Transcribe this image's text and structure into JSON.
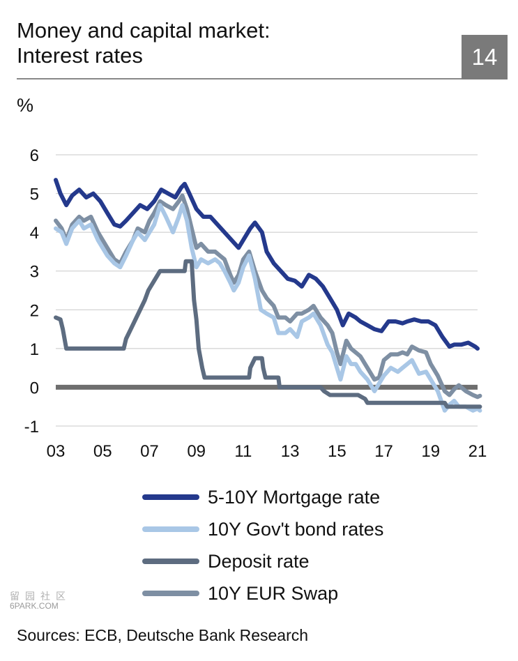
{
  "header": {
    "title_line1": "Money and capital market:",
    "title_line2": "Interest rates",
    "badge": "14"
  },
  "unit_label": "%",
  "chart_data": {
    "type": "line",
    "title": "Money and capital market: Interest rates",
    "ylabel": "%",
    "xlabel": "",
    "ylim": [
      -1,
      6
    ],
    "xlim": [
      2003,
      2021
    ],
    "x_tick_labels": [
      "03",
      "05",
      "07",
      "09",
      "11",
      "13",
      "15",
      "17",
      "19",
      "21"
    ],
    "x_ticks": [
      2003,
      2005,
      2007,
      2009,
      2011,
      2013,
      2015,
      2017,
      2019,
      2021
    ],
    "y_ticks": [
      -1,
      0,
      1,
      2,
      3,
      4,
      5,
      6
    ],
    "y_tick_labels": [
      "-1",
      "0",
      "1",
      "2",
      "3",
      "4",
      "5",
      "6"
    ],
    "grid": true,
    "legend_position": "bottom",
    "series": [
      {
        "name": "10Y EUR Swap",
        "color": "#7e8fa3",
        "points": [
          [
            2003.0,
            4.3
          ],
          [
            2003.25,
            4.1
          ],
          [
            2003.45,
            3.8
          ],
          [
            2003.7,
            4.2
          ],
          [
            2004.0,
            4.4
          ],
          [
            2004.2,
            4.3
          ],
          [
            2004.5,
            4.4
          ],
          [
            2004.8,
            4.0
          ],
          [
            2005.0,
            3.8
          ],
          [
            2005.2,
            3.6
          ],
          [
            2005.5,
            3.3
          ],
          [
            2005.75,
            3.2
          ],
          [
            2006.0,
            3.5
          ],
          [
            2006.3,
            3.8
          ],
          [
            2006.5,
            4.1
          ],
          [
            2006.8,
            4.0
          ],
          [
            2007.0,
            4.3
          ],
          [
            2007.2,
            4.5
          ],
          [
            2007.45,
            4.8
          ],
          [
            2007.7,
            4.7
          ],
          [
            2008.0,
            4.6
          ],
          [
            2008.25,
            4.8
          ],
          [
            2008.4,
            4.95
          ],
          [
            2008.6,
            4.6
          ],
          [
            2008.8,
            4.1
          ],
          [
            2009.0,
            3.6
          ],
          [
            2009.2,
            3.7
          ],
          [
            2009.5,
            3.5
          ],
          [
            2009.8,
            3.5
          ],
          [
            2010.0,
            3.4
          ],
          [
            2010.2,
            3.3
          ],
          [
            2010.45,
            2.9
          ],
          [
            2010.6,
            2.7
          ],
          [
            2010.8,
            2.9
          ],
          [
            2011.0,
            3.3
          ],
          [
            2011.25,
            3.5
          ],
          [
            2011.5,
            3.0
          ],
          [
            2011.8,
            2.5
          ],
          [
            2012.0,
            2.3
          ],
          [
            2012.3,
            2.1
          ],
          [
            2012.5,
            1.8
          ],
          [
            2012.8,
            1.8
          ],
          [
            2013.0,
            1.7
          ],
          [
            2013.3,
            1.9
          ],
          [
            2013.5,
            1.9
          ],
          [
            2013.8,
            2.0
          ],
          [
            2014.0,
            2.1
          ],
          [
            2014.3,
            1.8
          ],
          [
            2014.6,
            1.6
          ],
          [
            2014.8,
            1.4
          ],
          [
            2015.0,
            0.9
          ],
          [
            2015.15,
            0.6
          ],
          [
            2015.4,
            1.2
          ],
          [
            2015.6,
            1.0
          ],
          [
            2015.8,
            0.9
          ],
          [
            2016.0,
            0.8
          ],
          [
            2016.3,
            0.5
          ],
          [
            2016.6,
            0.2
          ],
          [
            2016.8,
            0.25
          ],
          [
            2017.0,
            0.7
          ],
          [
            2017.3,
            0.85
          ],
          [
            2017.6,
            0.85
          ],
          [
            2017.8,
            0.9
          ],
          [
            2018.0,
            0.85
          ],
          [
            2018.2,
            1.05
          ],
          [
            2018.5,
            0.95
          ],
          [
            2018.8,
            0.9
          ],
          [
            2019.0,
            0.6
          ],
          [
            2019.3,
            0.3
          ],
          [
            2019.6,
            -0.1
          ],
          [
            2019.8,
            -0.2
          ],
          [
            2020.0,
            -0.05
          ],
          [
            2020.2,
            0.05
          ],
          [
            2020.5,
            -0.1
          ],
          [
            2020.8,
            -0.2
          ],
          [
            2021.0,
            -0.25
          ],
          [
            2021.1,
            -0.22
          ]
        ]
      },
      {
        "name": "10Y Gov't bond rates",
        "color": "#a9c7e6",
        "points": [
          [
            2003.0,
            4.1
          ],
          [
            2003.25,
            4.0
          ],
          [
            2003.45,
            3.7
          ],
          [
            2003.7,
            4.1
          ],
          [
            2004.0,
            4.3
          ],
          [
            2004.2,
            4.1
          ],
          [
            2004.5,
            4.2
          ],
          [
            2004.8,
            3.8
          ],
          [
            2005.0,
            3.6
          ],
          [
            2005.2,
            3.4
          ],
          [
            2005.5,
            3.2
          ],
          [
            2005.75,
            3.1
          ],
          [
            2006.0,
            3.4
          ],
          [
            2006.3,
            3.8
          ],
          [
            2006.5,
            4.0
          ],
          [
            2006.8,
            3.8
          ],
          [
            2007.0,
            4.0
          ],
          [
            2007.2,
            4.2
          ],
          [
            2007.45,
            4.7
          ],
          [
            2007.7,
            4.4
          ],
          [
            2008.0,
            4.0
          ],
          [
            2008.25,
            4.4
          ],
          [
            2008.4,
            4.7
          ],
          [
            2008.6,
            4.3
          ],
          [
            2008.8,
            3.6
          ],
          [
            2009.0,
            3.1
          ],
          [
            2009.2,
            3.3
          ],
          [
            2009.5,
            3.2
          ],
          [
            2009.8,
            3.3
          ],
          [
            2010.0,
            3.2
          ],
          [
            2010.2,
            3.0
          ],
          [
            2010.45,
            2.7
          ],
          [
            2010.6,
            2.5
          ],
          [
            2010.8,
            2.7
          ],
          [
            2011.0,
            3.1
          ],
          [
            2011.25,
            3.4
          ],
          [
            2011.5,
            2.8
          ],
          [
            2011.75,
            2.0
          ],
          [
            2012.0,
            1.9
          ],
          [
            2012.3,
            1.8
          ],
          [
            2012.5,
            1.4
          ],
          [
            2012.8,
            1.4
          ],
          [
            2013.0,
            1.5
          ],
          [
            2013.3,
            1.3
          ],
          [
            2013.5,
            1.7
          ],
          [
            2013.8,
            1.8
          ],
          [
            2014.0,
            1.9
          ],
          [
            2014.3,
            1.6
          ],
          [
            2014.6,
            1.1
          ],
          [
            2014.8,
            0.9
          ],
          [
            2015.0,
            0.5
          ],
          [
            2015.15,
            0.2
          ],
          [
            2015.4,
            0.8
          ],
          [
            2015.6,
            0.6
          ],
          [
            2015.8,
            0.6
          ],
          [
            2016.0,
            0.4
          ],
          [
            2016.3,
            0.2
          ],
          [
            2016.6,
            -0.1
          ],
          [
            2016.8,
            0.1
          ],
          [
            2017.0,
            0.3
          ],
          [
            2017.3,
            0.5
          ],
          [
            2017.6,
            0.4
          ],
          [
            2017.8,
            0.5
          ],
          [
            2018.0,
            0.6
          ],
          [
            2018.2,
            0.7
          ],
          [
            2018.5,
            0.35
          ],
          [
            2018.8,
            0.4
          ],
          [
            2019.0,
            0.2
          ],
          [
            2019.3,
            -0.1
          ],
          [
            2019.6,
            -0.6
          ],
          [
            2019.8,
            -0.45
          ],
          [
            2020.0,
            -0.35
          ],
          [
            2020.2,
            -0.5
          ],
          [
            2020.5,
            -0.5
          ],
          [
            2020.8,
            -0.6
          ],
          [
            2021.0,
            -0.55
          ],
          [
            2021.1,
            -0.6
          ]
        ]
      },
      {
        "name": "Deposit rate",
        "color": "#5d6c80",
        "points": [
          [
            2003.0,
            1.8
          ],
          [
            2003.2,
            1.75
          ],
          [
            2003.3,
            1.5
          ],
          [
            2003.45,
            1.0
          ],
          [
            2005.9,
            1.0
          ],
          [
            2006.0,
            1.25
          ],
          [
            2006.2,
            1.5
          ],
          [
            2006.4,
            1.75
          ],
          [
            2006.6,
            2.0
          ],
          [
            2006.8,
            2.25
          ],
          [
            2006.95,
            2.5
          ],
          [
            2007.2,
            2.75
          ],
          [
            2007.45,
            3.0
          ],
          [
            2008.5,
            3.0
          ],
          [
            2008.55,
            3.25
          ],
          [
            2008.8,
            3.25
          ],
          [
            2008.85,
            2.75
          ],
          [
            2008.9,
            2.25
          ],
          [
            2009.0,
            1.75
          ],
          [
            2009.1,
            1.0
          ],
          [
            2009.25,
            0.5
          ],
          [
            2009.35,
            0.25
          ],
          [
            2011.25,
            0.25
          ],
          [
            2011.3,
            0.5
          ],
          [
            2011.5,
            0.75
          ],
          [
            2011.8,
            0.75
          ],
          [
            2011.85,
            0.5
          ],
          [
            2011.95,
            0.25
          ],
          [
            2012.5,
            0.25
          ],
          [
            2012.55,
            0.0
          ],
          [
            2014.3,
            0.0
          ],
          [
            2014.45,
            -0.1
          ],
          [
            2014.7,
            -0.2
          ],
          [
            2015.9,
            -0.2
          ],
          [
            2016.2,
            -0.3
          ],
          [
            2016.3,
            -0.4
          ],
          [
            2019.6,
            -0.4
          ],
          [
            2019.7,
            -0.5
          ],
          [
            2021.1,
            -0.5
          ]
        ]
      },
      {
        "name": "5-10Y Mortgage rate",
        "color": "#24398c",
        "points": [
          [
            2003.0,
            5.35
          ],
          [
            2003.2,
            5.0
          ],
          [
            2003.45,
            4.7
          ],
          [
            2003.7,
            4.95
          ],
          [
            2004.0,
            5.1
          ],
          [
            2004.3,
            4.9
          ],
          [
            2004.6,
            5.0
          ],
          [
            2004.9,
            4.8
          ],
          [
            2005.2,
            4.5
          ],
          [
            2005.5,
            4.2
          ],
          [
            2005.75,
            4.15
          ],
          [
            2006.0,
            4.3
          ],
          [
            2006.3,
            4.5
          ],
          [
            2006.6,
            4.7
          ],
          [
            2006.9,
            4.6
          ],
          [
            2007.2,
            4.8
          ],
          [
            2007.5,
            5.1
          ],
          [
            2007.8,
            5.0
          ],
          [
            2008.1,
            4.9
          ],
          [
            2008.35,
            5.15
          ],
          [
            2008.5,
            5.25
          ],
          [
            2008.7,
            5.0
          ],
          [
            2009.0,
            4.6
          ],
          [
            2009.3,
            4.4
          ],
          [
            2009.6,
            4.4
          ],
          [
            2009.9,
            4.2
          ],
          [
            2010.2,
            4.0
          ],
          [
            2010.5,
            3.8
          ],
          [
            2010.8,
            3.6
          ],
          [
            2011.0,
            3.8
          ],
          [
            2011.3,
            4.1
          ],
          [
            2011.5,
            4.25
          ],
          [
            2011.8,
            4.0
          ],
          [
            2012.0,
            3.5
          ],
          [
            2012.3,
            3.2
          ],
          [
            2012.6,
            3.0
          ],
          [
            2012.9,
            2.8
          ],
          [
            2013.2,
            2.75
          ],
          [
            2013.5,
            2.6
          ],
          [
            2013.8,
            2.9
          ],
          [
            2014.1,
            2.8
          ],
          [
            2014.4,
            2.6
          ],
          [
            2014.7,
            2.3
          ],
          [
            2015.0,
            2.0
          ],
          [
            2015.25,
            1.6
          ],
          [
            2015.5,
            1.9
          ],
          [
            2015.8,
            1.8
          ],
          [
            2016.0,
            1.7
          ],
          [
            2016.3,
            1.6
          ],
          [
            2016.6,
            1.5
          ],
          [
            2016.9,
            1.45
          ],
          [
            2017.2,
            1.7
          ],
          [
            2017.5,
            1.7
          ],
          [
            2017.8,
            1.65
          ],
          [
            2018.0,
            1.7
          ],
          [
            2018.3,
            1.75
          ],
          [
            2018.6,
            1.7
          ],
          [
            2018.9,
            1.7
          ],
          [
            2019.2,
            1.6
          ],
          [
            2019.5,
            1.3
          ],
          [
            2019.8,
            1.05
          ],
          [
            2020.0,
            1.1
          ],
          [
            2020.3,
            1.1
          ],
          [
            2020.6,
            1.15
          ],
          [
            2020.9,
            1.05
          ],
          [
            2021.0,
            1.0
          ]
        ]
      }
    ],
    "zero_line_color": "#6e6e6e",
    "gridline_color": "#c8c8c8"
  },
  "legend": {
    "items": [
      {
        "label": "5-10Y Mortgage rate",
        "color": "#24398c"
      },
      {
        "label": "10Y Gov't bond rates",
        "color": "#a9c7e6"
      },
      {
        "label": "Deposit rate",
        "color": "#5d6c80"
      },
      {
        "label": "10Y EUR Swap",
        "color": "#7e8fa3"
      }
    ]
  },
  "watermark": {
    "glyphs": "留园社区",
    "text": "6PARK.COM"
  },
  "source": "Sources: ECB, Deutsche Bank Research"
}
